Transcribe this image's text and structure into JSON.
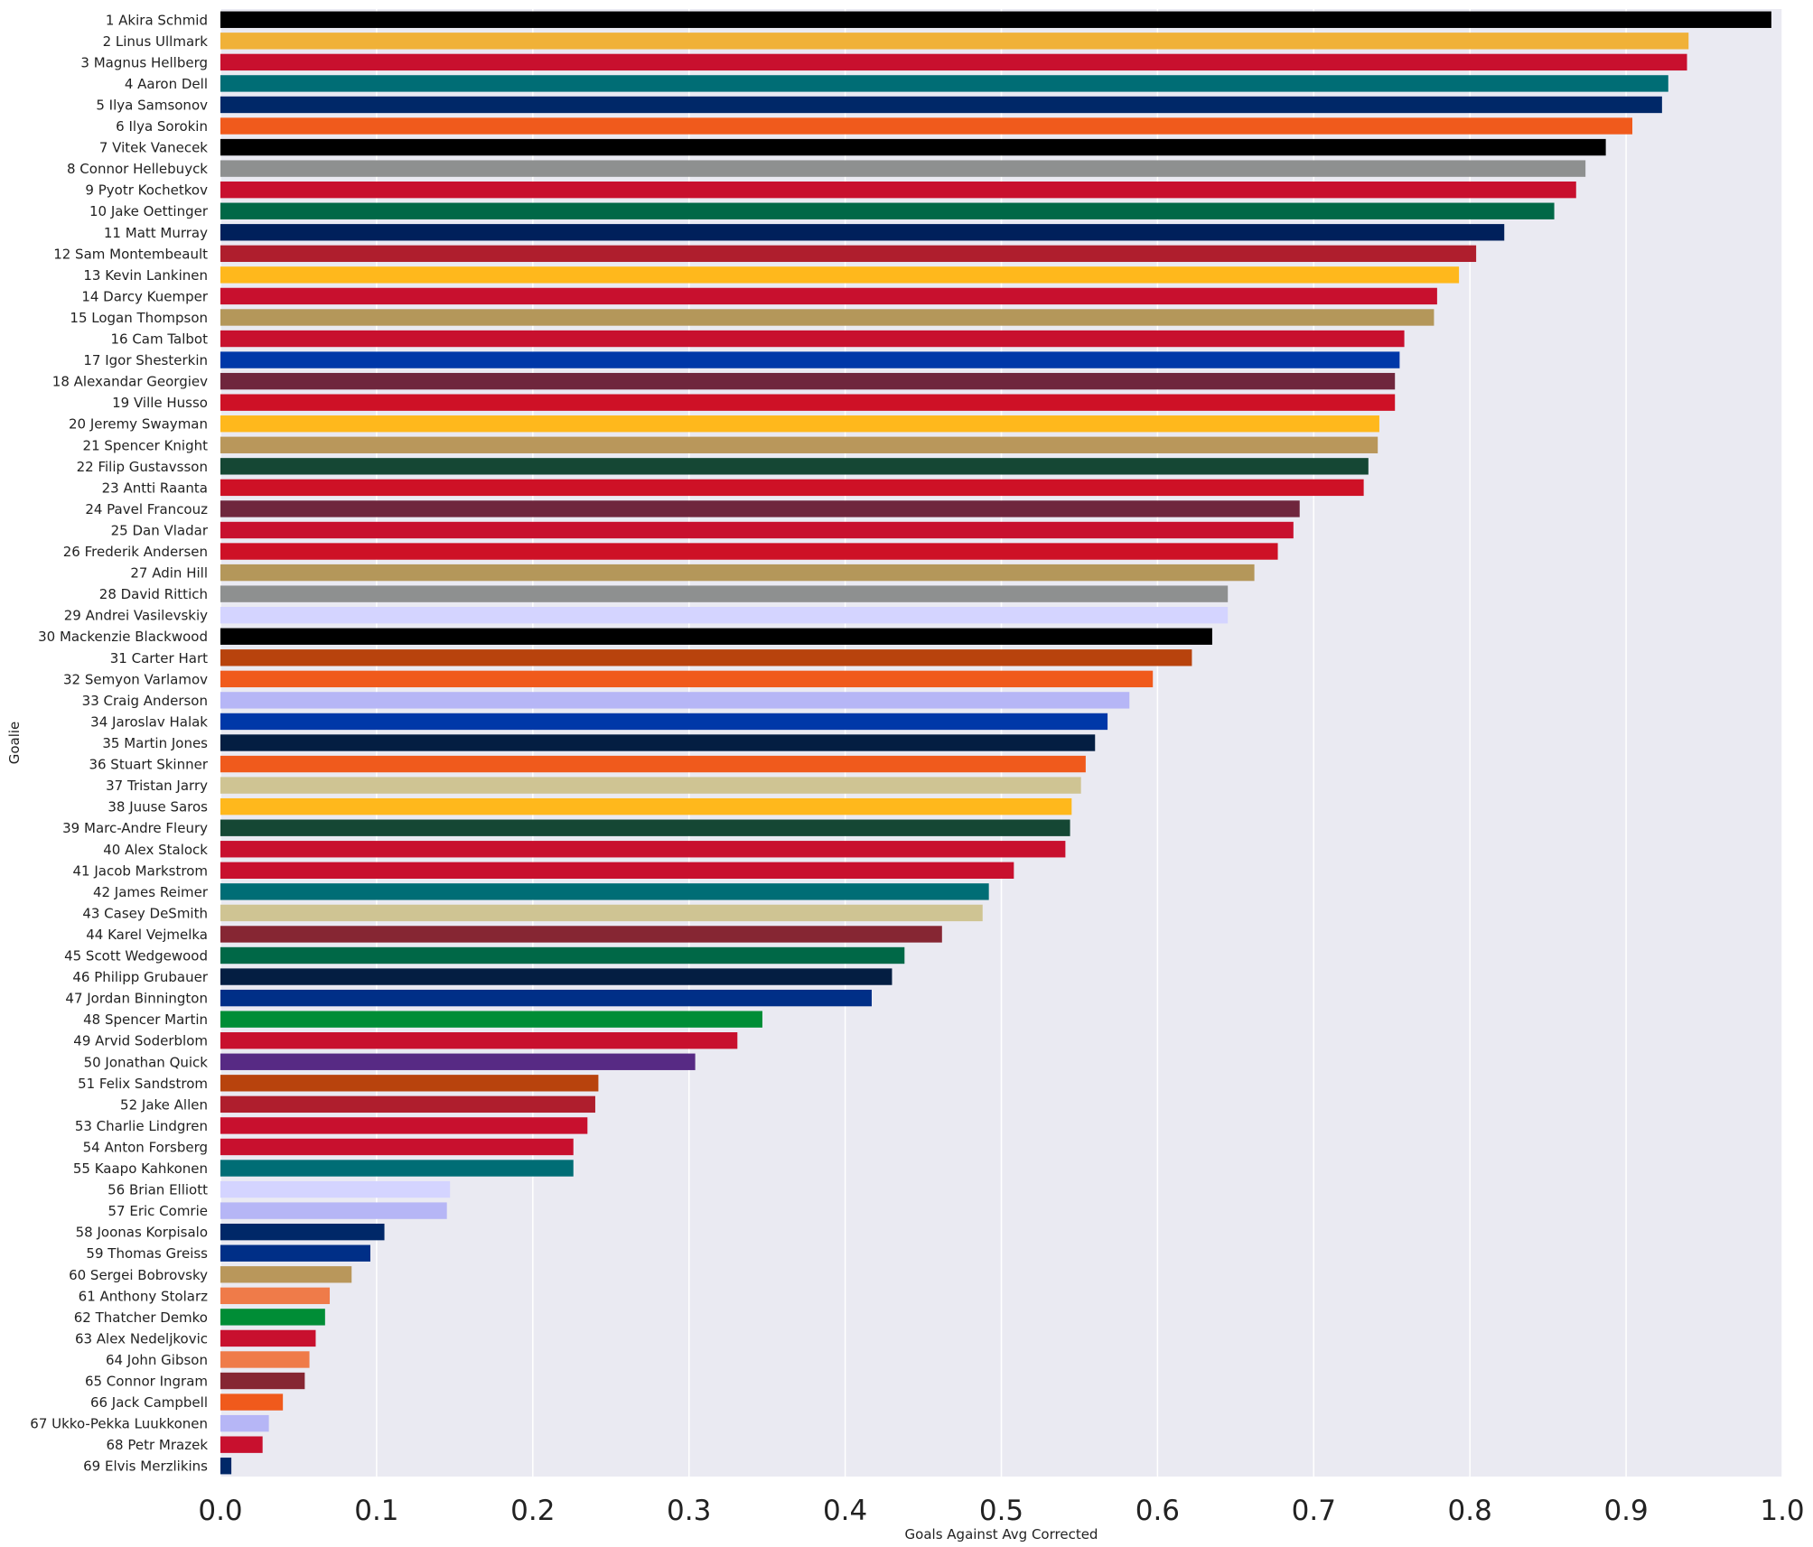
{
  "chart_data": {
    "type": "bar",
    "orientation": "horizontal",
    "xlabel": "Goals Against Avg Corrected",
    "ylabel": "Goalie",
    "xlim": [
      0.0,
      1.0
    ],
    "x_ticks": [
      "0.0",
      "0.1",
      "0.2",
      "0.3",
      "0.4",
      "0.5",
      "0.6",
      "0.7",
      "0.8",
      "0.9",
      "1.0"
    ],
    "grid": true,
    "legend": "none",
    "categories": [
      "1 Akira Schmid",
      "2 Linus Ullmark",
      "3 Magnus Hellberg",
      "4 Aaron Dell",
      "5 Ilya Samsonov",
      "6 Ilya Sorokin",
      "7 Vitek Vanecek",
      "8 Connor Hellebuyck",
      "9 Pyotr Kochetkov",
      "10 Jake Oettinger",
      "11 Matt Murray",
      "12 Sam Montembeault",
      "13 Kevin Lankinen",
      "14 Darcy Kuemper",
      "15 Logan Thompson",
      "16 Cam Talbot",
      "17 Igor Shesterkin",
      "18 Alexandar Georgiev",
      "19 Ville Husso",
      "20 Jeremy Swayman",
      "21 Spencer Knight",
      "22 Filip Gustavsson",
      "23 Antti Raanta",
      "24 Pavel Francouz",
      "25 Dan Vladar",
      "26 Frederik Andersen",
      "27 Adin Hill",
      "28 David Rittich",
      "29 Andrei Vasilevskiy",
      "30 Mackenzie Blackwood",
      "31 Carter Hart",
      "32 Semyon Varlamov",
      "33 Craig Anderson",
      "34 Jaroslav Halak",
      "35 Martin Jones",
      "36 Stuart Skinner",
      "37 Tristan Jarry",
      "38 Juuse Saros",
      "39 Marc-Andre Fleury",
      "40 Alex Stalock",
      "41 Jacob Markstrom",
      "42 James Reimer",
      "43 Casey DeSmith",
      "44 Karel Vejmelka",
      "45 Scott Wedgewood",
      "46 Philipp Grubauer",
      "47 Jordan Binnington",
      "48 Spencer Martin",
      "49 Arvid Soderblom",
      "50 Jonathan Quick",
      "51 Felix Sandstrom",
      "52 Jake Allen",
      "53 Charlie Lindgren",
      "54 Anton Forsberg",
      "55 Kaapo Kahkonen",
      "56 Brian Elliott",
      "57 Eric Comrie",
      "58 Joonas Korpisalo",
      "59 Thomas Greiss",
      "60 Sergei Bobrovsky",
      "61 Anthony Stolarz",
      "62 Thatcher Demko",
      "63 Alex Nedeljkovic",
      "64 John Gibson",
      "65 Connor Ingram",
      "66 Jack Campbell",
      "67 Ukko-Pekka Luukkonen",
      "68 Petr Mrazek",
      "69 Elvis Merzlikins"
    ],
    "values": [
      0.993,
      0.94,
      0.939,
      0.927,
      0.923,
      0.904,
      0.887,
      0.874,
      0.868,
      0.854,
      0.822,
      0.804,
      0.793,
      0.779,
      0.777,
      0.758,
      0.755,
      0.752,
      0.752,
      0.742,
      0.741,
      0.735,
      0.732,
      0.691,
      0.687,
      0.677,
      0.662,
      0.645,
      0.645,
      0.635,
      0.622,
      0.597,
      0.582,
      0.568,
      0.56,
      0.554,
      0.551,
      0.545,
      0.544,
      0.541,
      0.508,
      0.492,
      0.488,
      0.462,
      0.438,
      0.43,
      0.417,
      0.347,
      0.331,
      0.304,
      0.242,
      0.24,
      0.235,
      0.226,
      0.226,
      0.147,
      0.145,
      0.105,
      0.096,
      0.084,
      0.07,
      0.067,
      0.061,
      0.057,
      0.054,
      0.04,
      0.031,
      0.027,
      0.007
    ],
    "colors": [
      "#000000",
      "#F0B138",
      "#C8102E",
      "#006D75",
      "#002868",
      "#F05A1C",
      "#000000",
      "#8E9090",
      "#C8102E",
      "#006847",
      "#00205B",
      "#AF1E2D",
      "#FFB81C",
      "#C8102E",
      "#B4975A",
      "#C8102E",
      "#0038A8",
      "#6F263D",
      "#CE1126",
      "#FFB81C",
      "#B9975B",
      "#154734",
      "#CE1126",
      "#6F263D",
      "#C8102E",
      "#CE1126",
      "#B4975A",
      "#8E9090",
      "#D4D4FF",
      "#000000",
      "#B8430D",
      "#F05A1C",
      "#B6B6F6",
      "#0038A8",
      "#041E42",
      "#F05A1C",
      "#CFC493",
      "#FFB81C",
      "#154734",
      "#C8102E",
      "#C8102E",
      "#006D75",
      "#CFC493",
      "#862633",
      "#006847",
      "#041E42",
      "#002F87",
      "#008D36",
      "#C8102E",
      "#572A84",
      "#B8430D",
      "#AF1E2D",
      "#C8102E",
      "#C8102E",
      "#006D75",
      "#D4D4FF",
      "#B6B6F6",
      "#002868",
      "#002F87",
      "#B9975B",
      "#EF7B49",
      "#008D36",
      "#C8102E",
      "#EF7B49",
      "#862633",
      "#F05A1C",
      "#B6B6F6",
      "#C8102E",
      "#002868"
    ],
    "plot_background": "#EAEAF2",
    "grid_color": "#FFFFFF"
  }
}
